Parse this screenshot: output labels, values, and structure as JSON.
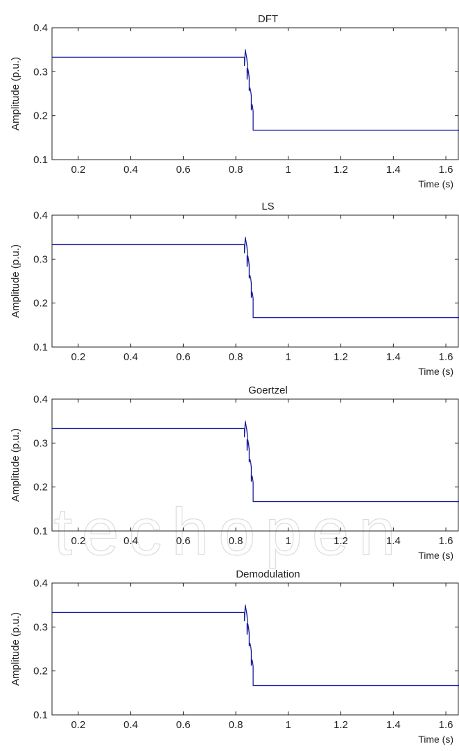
{
  "watermark": "IntechOpen",
  "colors": {
    "line": "#1a1f9c",
    "axis": "#222222",
    "watermark": "#dcdcdc"
  },
  "chart_data": [
    {
      "type": "line",
      "title": "DFT",
      "xlabel": "Time (s)",
      "ylabel": "Amplitude (p.u.)",
      "xlim": [
        0.1,
        1.65
      ],
      "ylim": [
        0.1,
        0.4
      ],
      "xticks": [
        0.2,
        0.4,
        0.6,
        0.8,
        1,
        1.2,
        1.4,
        1.6
      ],
      "xtick_labels": [
        "0.2",
        "0.4",
        "0.6",
        "0.8",
        "1",
        "1.2",
        "1.4",
        "1.6"
      ],
      "yticks": [
        0.1,
        0.2,
        0.3,
        0.4
      ],
      "ytick_labels": [
        "0.1",
        "0.2",
        "0.3",
        "0.4"
      ],
      "grid": false,
      "series": [
        {
          "x": [
            0.1,
            0.833,
            0.833,
            0.836,
            0.839,
            0.842,
            0.845,
            0.843,
            0.843,
            0.846,
            0.849,
            0.851,
            0.851,
            0.854,
            0.857,
            0.859,
            0.859,
            0.862,
            0.864,
            0.866,
            0.866,
            1.65
          ],
          "y": [
            0.333,
            0.333,
            0.314,
            0.35,
            0.34,
            0.33,
            0.31,
            0.308,
            0.283,
            0.307,
            0.297,
            0.285,
            0.257,
            0.263,
            0.255,
            0.245,
            0.213,
            0.225,
            0.22,
            0.21,
            0.167,
            0.167
          ]
        }
      ]
    },
    {
      "type": "line",
      "title": "LS",
      "xlabel": "Time (s)",
      "ylabel": "Amplitude (p.u.)",
      "xlim": [
        0.1,
        1.65
      ],
      "ylim": [
        0.1,
        0.4
      ],
      "xticks": [
        0.2,
        0.4,
        0.6,
        0.8,
        1,
        1.2,
        1.4,
        1.6
      ],
      "xtick_labels": [
        "0.2",
        "0.4",
        "0.6",
        "0.8",
        "1",
        "1.2",
        "1.4",
        "1.6"
      ],
      "yticks": [
        0.1,
        0.2,
        0.3,
        0.4
      ],
      "ytick_labels": [
        "0.1",
        "0.2",
        "0.3",
        "0.4"
      ],
      "grid": false,
      "series": [
        {
          "x": [
            0.1,
            0.833,
            0.833,
            0.836,
            0.839,
            0.842,
            0.845,
            0.843,
            0.843,
            0.846,
            0.849,
            0.851,
            0.851,
            0.854,
            0.857,
            0.859,
            0.859,
            0.862,
            0.864,
            0.866,
            0.866,
            1.65
          ],
          "y": [
            0.333,
            0.333,
            0.314,
            0.35,
            0.34,
            0.33,
            0.31,
            0.308,
            0.283,
            0.307,
            0.297,
            0.285,
            0.257,
            0.263,
            0.255,
            0.245,
            0.213,
            0.225,
            0.22,
            0.21,
            0.167,
            0.167
          ]
        }
      ]
    },
    {
      "type": "line",
      "title": "Goertzel",
      "xlabel": "Time (s)",
      "ylabel": "Amplitude (p.u.)",
      "xlim": [
        0.1,
        1.65
      ],
      "ylim": [
        0.1,
        0.4
      ],
      "xticks": [
        0.2,
        0.4,
        0.6,
        0.8,
        1,
        1.2,
        1.4,
        1.6
      ],
      "xtick_labels": [
        "0.2",
        "0.4",
        "0.6",
        "0.8",
        "1",
        "1.2",
        "1.4",
        "1.6"
      ],
      "yticks": [
        0.1,
        0.2,
        0.3,
        0.4
      ],
      "ytick_labels": [
        "0.1",
        "0.2",
        "0.3",
        "0.4"
      ],
      "grid": false,
      "series": [
        {
          "x": [
            0.1,
            0.833,
            0.833,
            0.836,
            0.839,
            0.842,
            0.845,
            0.843,
            0.843,
            0.846,
            0.849,
            0.851,
            0.851,
            0.854,
            0.857,
            0.859,
            0.859,
            0.862,
            0.864,
            0.866,
            0.866,
            1.65
          ],
          "y": [
            0.333,
            0.333,
            0.314,
            0.35,
            0.34,
            0.33,
            0.31,
            0.308,
            0.283,
            0.307,
            0.297,
            0.285,
            0.257,
            0.263,
            0.255,
            0.245,
            0.213,
            0.225,
            0.22,
            0.21,
            0.167,
            0.167
          ]
        }
      ]
    },
    {
      "type": "line",
      "title": "Demodulation",
      "xlabel": "Time (s)",
      "ylabel": "Amplitude (p.u.)",
      "xlim": [
        0.1,
        1.65
      ],
      "ylim": [
        0.1,
        0.4
      ],
      "xticks": [
        0.2,
        0.4,
        0.6,
        0.8,
        1,
        1.2,
        1.4,
        1.6
      ],
      "xtick_labels": [
        "0.2",
        "0.4",
        "0.6",
        "0.8",
        "1",
        "1.2",
        "1.4",
        "1.6"
      ],
      "yticks": [
        0.1,
        0.2,
        0.3,
        0.4
      ],
      "ytick_labels": [
        "0.1",
        "0.2",
        "0.3",
        "0.4"
      ],
      "grid": false,
      "series": [
        {
          "x": [
            0.1,
            0.833,
            0.833,
            0.836,
            0.839,
            0.842,
            0.845,
            0.843,
            0.843,
            0.846,
            0.849,
            0.851,
            0.851,
            0.854,
            0.857,
            0.859,
            0.859,
            0.862,
            0.864,
            0.866,
            0.866,
            1.65
          ],
          "y": [
            0.333,
            0.333,
            0.314,
            0.35,
            0.34,
            0.33,
            0.31,
            0.308,
            0.283,
            0.307,
            0.297,
            0.285,
            0.257,
            0.263,
            0.255,
            0.245,
            0.213,
            0.225,
            0.22,
            0.21,
            0.167,
            0.167
          ]
        }
      ]
    }
  ]
}
